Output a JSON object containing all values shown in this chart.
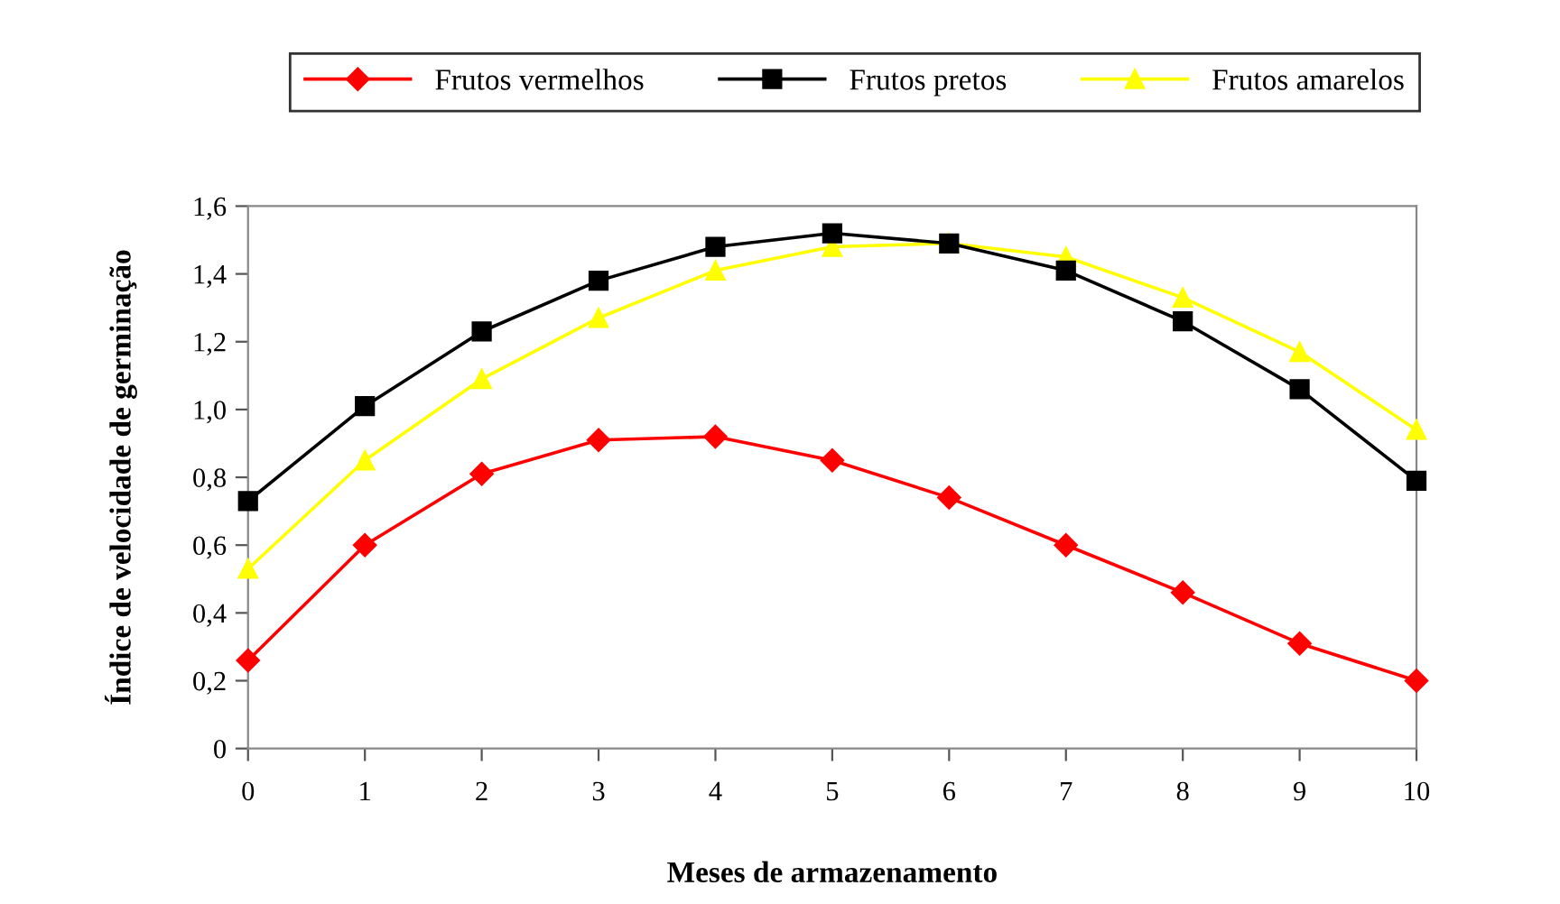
{
  "chart_data": {
    "type": "line",
    "xlabel": "Meses de armazenamento",
    "ylabel": "Índice de velocidade de germinação",
    "x": [
      0,
      1,
      2,
      3,
      4,
      5,
      6,
      7,
      8,
      9,
      10
    ],
    "series": [
      {
        "name": "Frutos vermelhos",
        "color": "#ff0000",
        "marker": "diamond",
        "values": [
          0.26,
          0.6,
          0.81,
          0.91,
          0.92,
          0.85,
          0.74,
          0.6,
          0.46,
          0.31,
          0.2
        ]
      },
      {
        "name": "Frutos pretos",
        "color": "#000000",
        "marker": "square",
        "values": [
          0.73,
          1.01,
          1.23,
          1.38,
          1.48,
          1.52,
          1.49,
          1.41,
          1.26,
          1.06,
          0.79
        ]
      },
      {
        "name": "Frutos amarelos",
        "color": "#ffff00",
        "marker": "triangle",
        "values": [
          0.53,
          0.85,
          1.09,
          1.27,
          1.41,
          1.48,
          1.49,
          1.45,
          1.33,
          1.17,
          0.94
        ]
      }
    ],
    "xlim": [
      0,
      10
    ],
    "xticks": [
      0,
      1,
      2,
      3,
      4,
      5,
      6,
      7,
      8,
      9,
      10
    ],
    "ylim": [
      0,
      1.6
    ],
    "yticks": [
      0,
      {
        "value": 0.2,
        "label": "0,2"
      },
      {
        "value": 0.4,
        "label": "0,4"
      },
      {
        "value": 0.6,
        "label": "0,6"
      },
      {
        "value": 0.8,
        "label": "0,8"
      },
      {
        "value": 1.0,
        "label": "1,0"
      },
      {
        "value": 1.2,
        "label": "1,2"
      },
      {
        "value": 1.4,
        "label": "1,4"
      },
      {
        "value": 1.6,
        "label": "1,6"
      }
    ],
    "grid": false,
    "legend": "top",
    "line_style": "solid"
  }
}
